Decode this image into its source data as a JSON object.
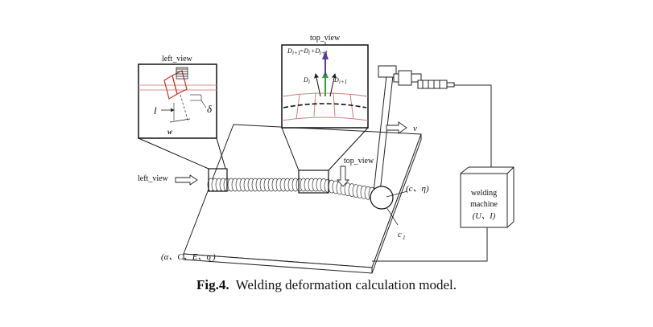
{
  "labels": {
    "left_view_top": "left_view",
    "top_view_top": "top_view",
    "top_view_plate": "top_view",
    "left_view_side": "left_view",
    "l": "l",
    "delta": "δ",
    "w": "w",
    "eq_lhs": "D",
    "eq_lhs_sub": "i+1",
    "eq_mid": "=D",
    "eq_mid_sub": "i",
    "eq_plus": "+D",
    "eq_plus_sub": "i+1",
    "d_i": "D",
    "d_i_sub": "i",
    "d_i1": "D",
    "d_i1_sub": "i+1",
    "v": "v",
    "c_eta": "(c、η)",
    "c1": "c",
    "c1_sub": "1",
    "material": "(α、C、E、σ",
    "material_sub": "s",
    "material_end": ")",
    "machine_line1": "welding",
    "machine_line2": "machine",
    "machine_line3": "(U、I)"
  },
  "caption": {
    "number": "Fig.4.",
    "text": "Welding deformation calculation model."
  }
}
